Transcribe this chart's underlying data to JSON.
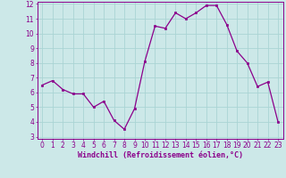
{
  "x": [
    0,
    1,
    2,
    3,
    4,
    5,
    6,
    7,
    8,
    9,
    10,
    11,
    12,
    13,
    14,
    15,
    16,
    17,
    18,
    19,
    20,
    21,
    22,
    23
  ],
  "y": [
    6.5,
    6.8,
    6.2,
    5.9,
    5.9,
    5.0,
    5.4,
    4.1,
    3.5,
    4.9,
    8.1,
    10.5,
    10.35,
    11.4,
    11.0,
    11.4,
    11.9,
    11.9,
    10.6,
    8.8,
    8.0,
    6.4,
    6.7,
    4.0
  ],
  "line_color": "#8b008b",
  "marker_color": "#8b008b",
  "bg_color": "#cce8e8",
  "grid_color": "#aad4d4",
  "xlabel": "Windchill (Refroidissement éolien,°C)",
  "xlabel_color": "#8b008b",
  "ylim_min": 3,
  "ylim_max": 12,
  "xlim_min": 0,
  "xlim_max": 23,
  "yticks": [
    3,
    4,
    5,
    6,
    7,
    8,
    9,
    10,
    11,
    12
  ],
  "xticks": [
    0,
    1,
    2,
    3,
    4,
    5,
    6,
    7,
    8,
    9,
    10,
    11,
    12,
    13,
    14,
    15,
    16,
    17,
    18,
    19,
    20,
    21,
    22,
    23
  ],
  "tick_color": "#8b008b",
  "spine_color": "#8b008b",
  "tick_fontsize": 5.5,
  "xlabel_fontsize": 6.0
}
